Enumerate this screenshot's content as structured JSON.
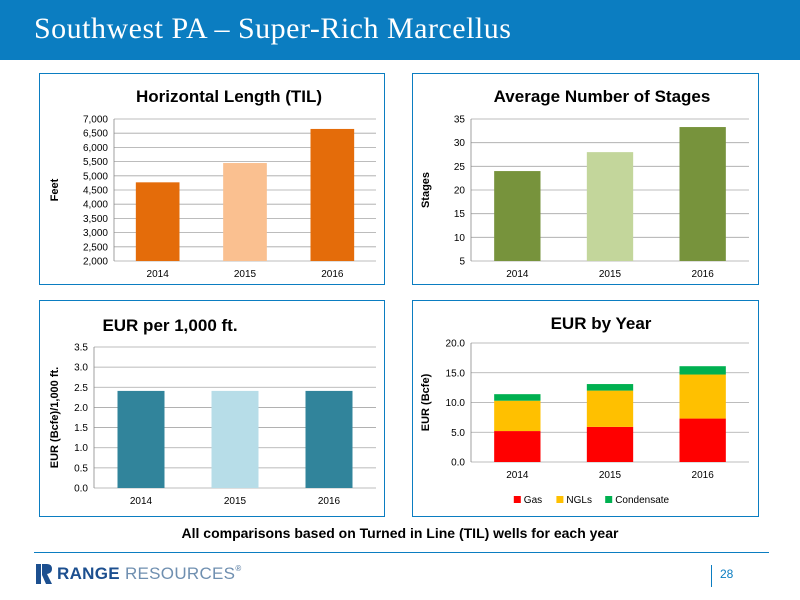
{
  "slide": {
    "title": "Southwest PA – Super-Rich Marcellus",
    "footnote": "All comparisons based on Turned in Line (TIL) wells for each year",
    "page_number": "28"
  },
  "logo": {
    "word_bold": "RANGE",
    "word_light": "RESOURCES",
    "reg": "®"
  },
  "colors": {
    "header": "#0b7dc1",
    "accent_line": "#0b7dc1"
  },
  "chart_data": [
    {
      "type": "bar",
      "title": "Horizontal Length (TIL)",
      "xlabel": "",
      "ylabel": "Feet",
      "categories": [
        "2014",
        "2015",
        "2016"
      ],
      "values": [
        4770,
        5450,
        6650
      ],
      "colors": [
        "#e46c0a",
        "#fac090",
        "#e46c0a"
      ],
      "ylim": [
        2000,
        7000
      ],
      "yticks": [
        2000,
        2500,
        3000,
        3500,
        4000,
        4500,
        5000,
        5500,
        6000,
        6500,
        7000
      ],
      "ytick_labels": [
        "2,000",
        "2,500",
        "3,000",
        "3,500",
        "4,000",
        "4,500",
        "5,000",
        "5,500",
        "6,000",
        "6,500",
        "7,000"
      ],
      "grid": true
    },
    {
      "type": "bar",
      "title": "Average Number of Stages",
      "xlabel": "",
      "ylabel": "Stages",
      "categories": [
        "2014",
        "2015",
        "2016"
      ],
      "values": [
        24,
        28,
        33.3
      ],
      "colors": [
        "#77933c",
        "#c3d69b",
        "#77933c"
      ],
      "ylim": [
        5,
        35
      ],
      "yticks": [
        5,
        10,
        15,
        20,
        25,
        30,
        35
      ],
      "ytick_labels": [
        "5",
        "10",
        "15",
        "20",
        "25",
        "30",
        "35"
      ],
      "grid": true
    },
    {
      "type": "bar",
      "title": "EUR per 1,000 ft.",
      "xlabel": "",
      "ylabel": "EUR (Bcfe)/1,000 ft.",
      "categories": [
        "2014",
        "2015",
        "2016"
      ],
      "values": [
        2.41,
        2.41,
        2.41
      ],
      "colors": [
        "#31849b",
        "#b7dde8",
        "#31849b"
      ],
      "ylim": [
        0,
        3.5
      ],
      "yticks": [
        0,
        0.5,
        1,
        1.5,
        2,
        2.5,
        3,
        3.5
      ],
      "ytick_labels": [
        "0.0",
        "0.5",
        "1.0",
        "1.5",
        "2.0",
        "2.5",
        "3.0",
        "3.5"
      ],
      "grid": true
    },
    {
      "type": "bar",
      "stacked": true,
      "title": "EUR by Year",
      "xlabel": "",
      "ylabel": "EUR (Bcfe)",
      "categories": [
        "2014",
        "2015",
        "2016"
      ],
      "series": [
        {
          "name": "Gas",
          "values": [
            5.2,
            5.9,
            7.3
          ],
          "color": "#ff0000"
        },
        {
          "name": "NGLs",
          "values": [
            5.1,
            6.1,
            7.4
          ],
          "color": "#ffc000"
        },
        {
          "name": "Condensate",
          "values": [
            1.1,
            1.1,
            1.4
          ],
          "color": "#00b050"
        }
      ],
      "ylim": [
        0,
        20
      ],
      "yticks": [
        0,
        5,
        10,
        15,
        20
      ],
      "ytick_labels": [
        "0.0",
        "5.0",
        "10.0",
        "15.0",
        "20.0"
      ],
      "legend": "bottom",
      "grid": true
    }
  ]
}
